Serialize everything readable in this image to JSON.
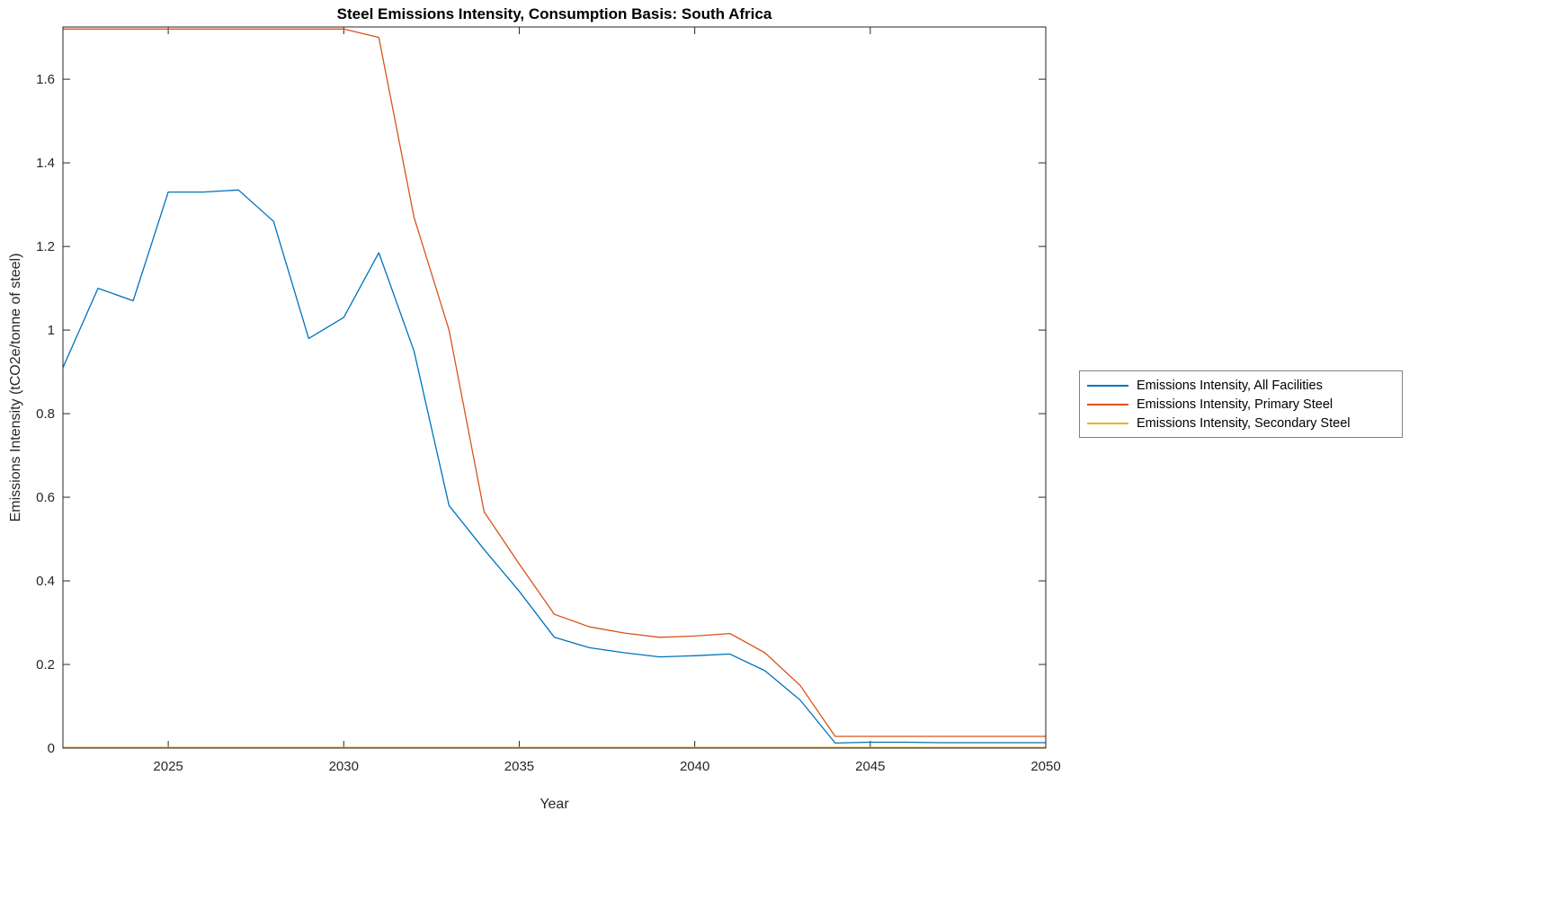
{
  "chart_data": {
    "type": "line",
    "title": "Steel Emissions Intensity, Consumption Basis: South Africa",
    "xlabel": "Year",
    "ylabel": "Emissions Intensity (tCO2e/tonne of steel)",
    "grid": false,
    "legend_position": "right-outside",
    "axis_color": "#262626",
    "xlim": [
      2022,
      2050
    ],
    "ylim": [
      0,
      1.725
    ],
    "xticks": [
      2025,
      2030,
      2035,
      2040,
      2045,
      2050
    ],
    "xtick_labels": [
      "2025",
      "2030",
      "2035",
      "2040",
      "2045",
      "2050"
    ],
    "yticks": [
      0,
      0.2,
      0.4,
      0.6,
      0.8,
      1.0,
      1.2,
      1.4,
      1.6
    ],
    "ytick_labels": [
      "0",
      "0.2",
      "0.4",
      "0.6",
      "0.8",
      "1",
      "1.2",
      "1.4",
      "1.6"
    ],
    "x": [
      2022,
      2023,
      2024,
      2025,
      2026,
      2027,
      2028,
      2029,
      2030,
      2031,
      2032,
      2033,
      2034,
      2035,
      2036,
      2037,
      2038,
      2039,
      2040,
      2041,
      2042,
      2043,
      2044,
      2045,
      2046,
      2047,
      2048,
      2049,
      2050
    ],
    "series": [
      {
        "name": "Emissions Intensity, All Facilities",
        "color": "#0072BD",
        "values": [
          0.91,
          1.1,
          1.07,
          1.33,
          1.33,
          1.335,
          1.26,
          0.98,
          1.03,
          1.185,
          0.95,
          0.58,
          0.475,
          0.375,
          0.265,
          0.24,
          0.228,
          0.218,
          0.221,
          0.225,
          0.185,
          0.115,
          0.012,
          0.014,
          0.014,
          0.013,
          0.013,
          0.013,
          0.013
        ]
      },
      {
        "name": "Emissions Intensity, Primary Steel",
        "color": "#D95319",
        "values": [
          1.72,
          1.72,
          1.72,
          1.72,
          1.72,
          1.72,
          1.72,
          1.72,
          1.72,
          1.7,
          1.27,
          1.0,
          0.565,
          0.44,
          0.32,
          0.29,
          0.275,
          0.265,
          0.268,
          0.274,
          0.228,
          0.15,
          0.028,
          0.028,
          0.028,
          0.028,
          0.028,
          0.028,
          0.028
        ]
      },
      {
        "name": "Emissions Intensity, Secondary Steel",
        "color": "#EDB120",
        "values": [
          0.002,
          0.002,
          0.002,
          0.002,
          0.002,
          0.002,
          0.002,
          0.002,
          0.002,
          0.002,
          0.002,
          0.002,
          0.002,
          0.002,
          0.002,
          0.002,
          0.002,
          0.002,
          0.002,
          0.002,
          0.002,
          0.002,
          0.002,
          0.002,
          0.002,
          0.002,
          0.002,
          0.002,
          0.002
        ]
      }
    ]
  }
}
